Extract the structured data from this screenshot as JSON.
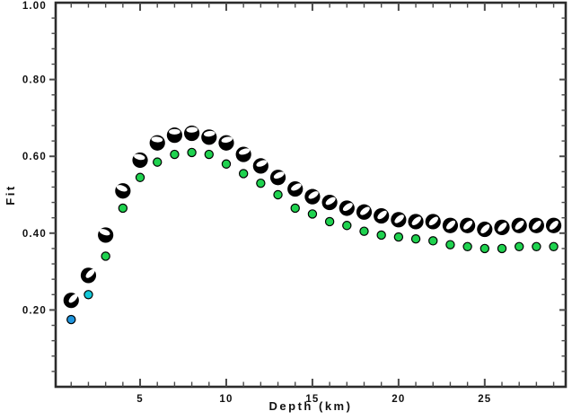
{
  "chart_data": {
    "type": "scatter",
    "title": "",
    "xlabel": "Depth (km)",
    "ylabel": "Fit",
    "xlim": [
      0.1,
      29.7
    ],
    "ylim": [
      0,
      1
    ],
    "grid": false,
    "legend": false,
    "x_major_ticks": [
      5,
      10,
      15,
      20,
      25
    ],
    "x_tick_labels": [
      "5",
      "10",
      "15",
      "20",
      "25"
    ],
    "x_minor_tick_interval": 1,
    "y_major_ticks": [
      0.2,
      0.4,
      0.6,
      0.8,
      1.0
    ],
    "y_tick_labels": [
      "0.20",
      "0.40",
      "0.60",
      "0.80",
      "1.00"
    ],
    "y_minor_tick_interval": 0.04,
    "frame_color": "#2b2b2b",
    "tick_color": "#4a4a4a",
    "background": "#ffffff",
    "x": [
      1,
      2,
      3,
      4,
      5,
      6,
      7,
      8,
      9,
      10,
      11,
      12,
      13,
      14,
      15,
      16,
      17,
      18,
      19,
      20,
      21,
      22,
      23,
      24,
      25,
      26,
      27,
      28,
      29
    ],
    "series": [
      {
        "name": "circle-fit",
        "marker": "circle",
        "stroke": "#000000",
        "default_fill": "#1fd24f",
        "point_fill_overrides": {
          "0": "#2095dd",
          "1": "#12c8d8"
        },
        "values": [
          0.175,
          0.24,
          0.34,
          0.465,
          0.545,
          0.585,
          0.605,
          0.61,
          0.605,
          0.58,
          0.555,
          0.53,
          0.5,
          0.465,
          0.45,
          0.43,
          0.42,
          0.405,
          0.395,
          0.39,
          0.385,
          0.38,
          0.37,
          0.365,
          0.36,
          0.36,
          0.365,
          0.365,
          0.365
        ]
      },
      {
        "name": "focal-mechanism-fit",
        "marker": "beachball",
        "fill": "#000000",
        "lens_fill": "#ffffff",
        "values": [
          0.225,
          0.29,
          0.395,
          0.51,
          0.59,
          0.635,
          0.655,
          0.66,
          0.65,
          0.635,
          0.605,
          0.575,
          0.545,
          0.515,
          0.495,
          0.48,
          0.465,
          0.455,
          0.445,
          0.435,
          0.43,
          0.43,
          0.42,
          0.42,
          0.41,
          0.415,
          0.42,
          0.42,
          0.42
        ],
        "lens_orientation": [
          [
            -45,
            0.38
          ],
          [
            -45,
            0.34
          ],
          [
            20,
            0.4
          ],
          [
            20,
            0.36
          ],
          [
            12,
            0.42
          ],
          [
            5,
            0.44
          ],
          [
            0,
            0.45
          ],
          [
            -3,
            0.45
          ],
          [
            -7,
            0.44
          ],
          [
            -12,
            0.42
          ],
          [
            -17,
            0.38
          ],
          [
            -21,
            0.35
          ],
          [
            -25,
            0.32
          ],
          [
            -28,
            0.28
          ],
          [
            -32,
            0.25
          ],
          [
            -34,
            0.22
          ],
          [
            -36,
            0.2
          ],
          [
            -38,
            0.18
          ],
          [
            -40,
            0.16
          ],
          [
            -40,
            0.14
          ],
          [
            -42,
            0.12
          ],
          [
            -42,
            0.1
          ],
          [
            -44,
            0.1
          ],
          [
            -44,
            0.08
          ],
          [
            -45,
            0.08
          ],
          [
            -45,
            0.06
          ],
          [
            -45,
            0.06
          ],
          [
            -45,
            0.05
          ],
          [
            -45,
            0.05
          ]
        ]
      }
    ]
  }
}
